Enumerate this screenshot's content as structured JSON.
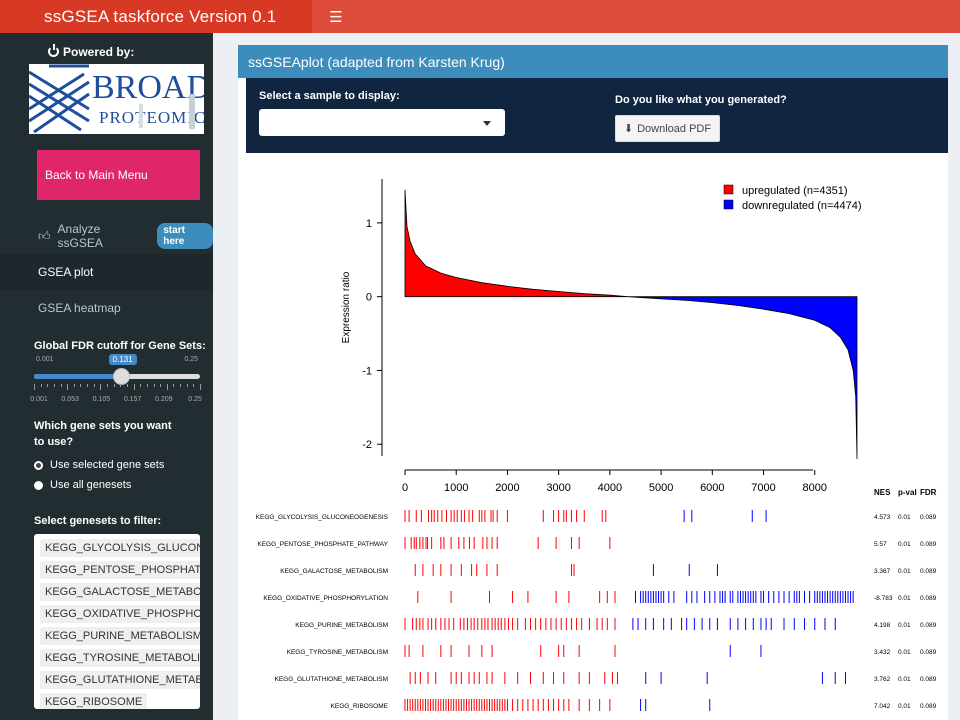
{
  "header": {
    "title": "ssGSEA taskforce Version 0.1",
    "menu_icon": "hamburger-icon"
  },
  "sidebar": {
    "powered_by": "Powered by:",
    "logo": {
      "line1": "BROAD",
      "line2": "PROTEOMICS"
    },
    "back_button": "Back to Main Menu",
    "analyze": {
      "label": "Analyze ssGSEA",
      "badge": "start here"
    },
    "menu": [
      {
        "label": "GSEA plot",
        "active": true
      },
      {
        "label": "GSEA heatmap",
        "active": false
      }
    ],
    "fdr": {
      "label": "Global FDR cutoff for Gene Sets:",
      "min": "0.001",
      "max": "0.25",
      "value": "0.131",
      "value_num": 0.131,
      "ticks": [
        "0.001",
        "0.053",
        "0.105",
        "0.157",
        "0.209",
        "0.25"
      ]
    },
    "genesets_question": "Which gene sets you want to use?",
    "options": [
      {
        "label": "Use selected gene sets",
        "checked": true
      },
      {
        "label": "Use all genesets",
        "checked": false
      }
    ],
    "filter_label": "Select genesets to filter:",
    "filter_items": [
      "KEGG_GLYCOLYSIS_GLUCONEOGENESIS",
      "KEGG_PENTOSE_PHOSPHATE_PATHWAY",
      "KEGG_GALACTOSE_METABOLISM",
      "KEGG_OXIDATIVE_PHOSPHORYLATION",
      "KEGG_PURINE_METABOLISM",
      "KEGG_TYROSINE_METABOLISM",
      "KEGG_GLUTATHIONE_METABOLISM",
      "KEGG_RIBOSOME"
    ]
  },
  "main": {
    "panel_title": "ssGSEAplot (adapted from Karsten Krug)",
    "select_label": "Select a sample to display:",
    "select_value": "",
    "generated_label": "Do you like what you generated?",
    "download_label": "Download PDF"
  },
  "colors": {
    "up": "#ff0000",
    "down": "#0000ff",
    "header": "#dd4b39",
    "sidebar": "#222d32",
    "back_button": "#e0266a"
  },
  "chart_data": {
    "type": "area",
    "ylabel": "Expression ratio",
    "xlim": [
      0,
      8825
    ],
    "ylim": [
      -2.2,
      1.5
    ],
    "x_ticks": [
      0,
      1000,
      2000,
      3000,
      4000,
      5000,
      6000,
      7000,
      8000
    ],
    "y_ticks": [
      1,
      0,
      -1,
      -2
    ],
    "legend": [
      {
        "label": "upregulated (n=4351)",
        "color": "#ff0000"
      },
      {
        "label": "downregulated (n=4474)",
        "color": "#0000ff"
      }
    ],
    "legend_position": "top-right",
    "curve": [
      [
        0,
        1.45
      ],
      [
        40,
        0.95
      ],
      [
        100,
        0.75
      ],
      [
        200,
        0.58
      ],
      [
        400,
        0.42
      ],
      [
        700,
        0.32
      ],
      [
        1000,
        0.26
      ],
      [
        1500,
        0.19
      ],
      [
        2000,
        0.14
      ],
      [
        2500,
        0.1
      ],
      [
        3000,
        0.07
      ],
      [
        3500,
        0.04
      ],
      [
        4000,
        0.02
      ],
      [
        4351,
        0.0
      ],
      [
        5000,
        -0.03
      ],
      [
        5500,
        -0.05
      ],
      [
        6000,
        -0.08
      ],
      [
        6500,
        -0.12
      ],
      [
        7000,
        -0.17
      ],
      [
        7500,
        -0.23
      ],
      [
        8000,
        -0.32
      ],
      [
        8300,
        -0.42
      ],
      [
        8500,
        -0.55
      ],
      [
        8650,
        -0.72
      ],
      [
        8750,
        -1.0
      ],
      [
        8800,
        -1.35
      ],
      [
        8825,
        -2.2
      ]
    ],
    "table_headers": [
      "NES",
      "p-val",
      "FDR"
    ],
    "gene_sets": [
      {
        "name": "KEGG_GLYCOLYSIS_GLUCONEOGENESIS",
        "nes": "4.573",
        "pval": "0.01",
        "fdr": "0.089",
        "up_hits": [
          0,
          80,
          220,
          320,
          460,
          520,
          570,
          640,
          720,
          810,
          900,
          960,
          1020,
          1100,
          1160,
          1250,
          1320,
          1450,
          1500,
          1560,
          1680,
          1720,
          1800,
          2000,
          2700,
          2900,
          3000,
          3100,
          3150,
          3250,
          3350,
          3500,
          3850,
          3920
        ],
        "down_hits": [
          5450,
          5600,
          6780,
          7050
        ]
      },
      {
        "name": "KEGG_PENTOSE_PHOSPHATE_PATHWAY",
        "nes": "5.57",
        "pval": "0.01",
        "fdr": "0.089",
        "up_hits": [
          0,
          120,
          180,
          220,
          290,
          350,
          410,
          440,
          520,
          700,
          760,
          900,
          1050,
          1150,
          1260,
          1350,
          1520,
          1600,
          1700,
          1800,
          2600,
          2950,
          3250,
          3400,
          4000
        ],
        "down_hits": []
      },
      {
        "name": "KEGG_GALACTOSE_METABOLISM",
        "nes": "3.367",
        "pval": "0.01",
        "fdr": "0.089",
        "up_hits": [
          200,
          350,
          550,
          700,
          900,
          1100,
          1300,
          1400,
          1600,
          1800,
          3250,
          3300
        ],
        "down_hits": [
          4850,
          5550,
          6100
        ]
      },
      {
        "name": "KEGG_OXIDATIVE_PHOSPHORYLATION",
        "nes": "-8.783",
        "pval": "0.01",
        "fdr": "0.089",
        "up_hits": [
          250,
          900,
          1650,
          2100,
          2400,
          2950,
          3200,
          3800,
          3950,
          4100
        ],
        "down_hits": [
          4500,
          4600,
          4650,
          4700,
          4750,
          4800,
          4850,
          4900,
          4950,
          5000,
          5050,
          5150,
          5250,
          5500,
          5600,
          5700,
          5850,
          5950,
          6050,
          6150,
          6200,
          6250,
          6350,
          6400,
          6500,
          6550,
          6600,
          6650,
          6700,
          6750,
          6800,
          6850,
          6950,
          7000,
          7100,
          7200,
          7300,
          7400,
          7500,
          7600,
          7650,
          7700,
          7800,
          7900,
          8000,
          8050,
          8100,
          8150,
          8200,
          8250,
          8300,
          8350,
          8400,
          8450,
          8500,
          8550,
          8600,
          8650,
          8700,
          8750
        ]
      },
      {
        "name": "KEGG_PURINE_METABOLISM",
        "nes": "4.198",
        "pval": "0.01",
        "fdr": "0.089",
        "up_hits": [
          0,
          150,
          220,
          290,
          350,
          450,
          520,
          600,
          700,
          780,
          860,
          950,
          1080,
          1150,
          1220,
          1290,
          1350,
          1420,
          1500,
          1560,
          1620,
          1700,
          1760,
          1820,
          1880,
          1950,
          2020,
          2100,
          2200,
          2350,
          2450,
          2550,
          2650,
          2750,
          2850,
          2950,
          3050,
          3150,
          3250,
          3350,
          3450,
          3600,
          3750,
          3850,
          3950,
          4100
        ],
        "down_hits": [
          4450,
          4550,
          4700,
          4850,
          5050,
          5200,
          5400,
          5500,
          5650,
          5800,
          5950,
          6100,
          6350,
          6500,
          6650,
          6800,
          6950,
          7050,
          7150,
          7400,
          7600,
          7800,
          8000,
          8200,
          8400
        ]
      },
      {
        "name": "KEGG_TYROSINE_METABOLISM",
        "nes": "3.432",
        "pval": "0.01",
        "fdr": "0.089",
        "up_hits": [
          0,
          80,
          350,
          700,
          900,
          1250,
          1500,
          1700,
          2650,
          3000,
          3100,
          3400,
          4100
        ],
        "down_hits": [
          6350,
          6950
        ]
      },
      {
        "name": "KEGG_GLUTATHIONE_METABOLISM",
        "nes": "3.762",
        "pval": "0.01",
        "fdr": "0.089",
        "up_hits": [
          100,
          200,
          300,
          450,
          600,
          900,
          1000,
          1100,
          1250,
          1350,
          1450,
          1600,
          1700,
          1950,
          2200,
          2450,
          2700,
          2900,
          3100,
          3400,
          3600,
          3900,
          4050,
          4150
        ],
        "down_hits": [
          4700,
          5000,
          5900,
          8150,
          8400,
          8600
        ]
      },
      {
        "name": "KEGG_RIBOSOME",
        "nes": "7.042",
        "pval": "0.01",
        "fdr": "0.089",
        "up_hits": [
          0,
          50,
          100,
          150,
          200,
          250,
          300,
          350,
          400,
          450,
          500,
          550,
          600,
          650,
          700,
          750,
          800,
          850,
          900,
          950,
          1000,
          1050,
          1100,
          1150,
          1200,
          1250,
          1300,
          1350,
          1400,
          1450,
          1500,
          1550,
          1600,
          1650,
          1700,
          1750,
          1800,
          1850,
          1900,
          1950,
          2000,
          2100,
          2200,
          2300,
          2400,
          2500,
          2600,
          2700,
          2800,
          2900,
          3000,
          3100,
          3200,
          3400,
          3600,
          3800,
          4000
        ],
        "down_hits": [
          4600,
          4700,
          5950
        ]
      }
    ]
  }
}
